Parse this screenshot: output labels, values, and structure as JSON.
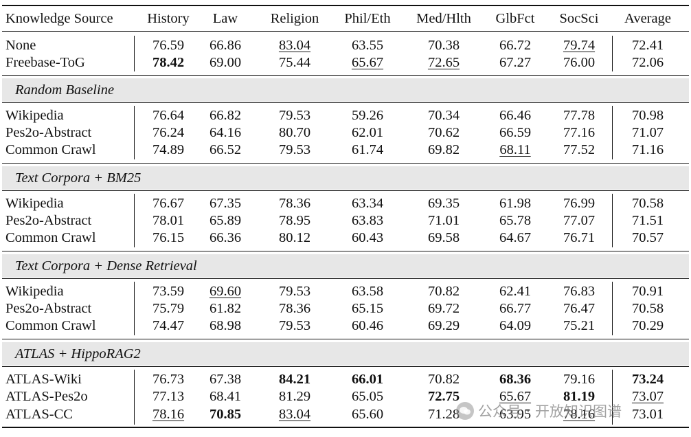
{
  "header": {
    "source": "Knowledge Source",
    "columns": [
      "History",
      "Law",
      "Religion",
      "Phil/Eth",
      "Med/Hlth",
      "GlbFct",
      "SocSci",
      "Average"
    ]
  },
  "sections": [
    {
      "label": "",
      "rows": [
        {
          "source": "None",
          "values": [
            "76.59",
            "66.86",
            "83.04",
            "63.55",
            "70.38",
            "66.72",
            "79.74",
            "72.41"
          ],
          "bold": [],
          "underline": [
            2,
            6
          ]
        },
        {
          "source": "Freebase-ToG",
          "values": [
            "78.42",
            "69.00",
            "75.44",
            "65.67",
            "72.65",
            "67.27",
            "76.00",
            "72.06"
          ],
          "bold": [
            0
          ],
          "underline": [
            3,
            4
          ]
        }
      ]
    },
    {
      "label": "Random Baseline",
      "rows": [
        {
          "source": "Wikipedia",
          "values": [
            "76.64",
            "66.82",
            "79.53",
            "59.26",
            "70.34",
            "66.46",
            "77.78",
            "70.98"
          ],
          "bold": [],
          "underline": []
        },
        {
          "source": "Pes2o-Abstract",
          "values": [
            "76.24",
            "64.16",
            "80.70",
            "62.01",
            "70.62",
            "66.59",
            "77.16",
            "71.07"
          ],
          "bold": [],
          "underline": []
        },
        {
          "source": "Common Crawl",
          "values": [
            "74.89",
            "66.52",
            "79.53",
            "61.74",
            "69.82",
            "68.11",
            "77.52",
            "71.16"
          ],
          "bold": [],
          "underline": [
            5
          ]
        }
      ]
    },
    {
      "label": "Text Corpora + BM25",
      "rows": [
        {
          "source": "Wikipedia",
          "values": [
            "76.67",
            "67.35",
            "78.36",
            "63.34",
            "69.35",
            "61.98",
            "76.99",
            "70.58"
          ],
          "bold": [],
          "underline": []
        },
        {
          "source": "Pes2o-Abstract",
          "values": [
            "78.01",
            "65.89",
            "78.95",
            "63.83",
            "71.01",
            "65.78",
            "77.07",
            "71.51"
          ],
          "bold": [],
          "underline": []
        },
        {
          "source": "Common Crawl",
          "values": [
            "76.15",
            "66.36",
            "80.12",
            "60.43",
            "69.58",
            "64.67",
            "76.71",
            "70.57"
          ],
          "bold": [],
          "underline": []
        }
      ]
    },
    {
      "label": "Text Corpora + Dense Retrieval",
      "rows": [
        {
          "source": "Wikipedia",
          "values": [
            "73.59",
            "69.60",
            "79.53",
            "63.58",
            "70.82",
            "62.41",
            "76.83",
            "70.91"
          ],
          "bold": [],
          "underline": [
            1
          ]
        },
        {
          "source": "Pes2o-Abstract",
          "values": [
            "75.79",
            "61.82",
            "78.36",
            "65.15",
            "69.72",
            "66.77",
            "76.47",
            "70.58"
          ],
          "bold": [],
          "underline": []
        },
        {
          "source": "Common Crawl",
          "values": [
            "74.47",
            "68.98",
            "79.53",
            "60.46",
            "69.29",
            "64.09",
            "75.21",
            "70.29"
          ],
          "bold": [],
          "underline": []
        }
      ]
    },
    {
      "label": "ATLAS + HippoRAG2",
      "rows": [
        {
          "source": "ATLAS-Wiki",
          "values": [
            "76.73",
            "67.38",
            "84.21",
            "66.01",
            "70.82",
            "68.36",
            "79.16",
            "73.24"
          ],
          "bold": [
            2,
            3,
            5,
            7
          ],
          "underline": []
        },
        {
          "source": "ATLAS-Pes2o",
          "values": [
            "77.13",
            "68.41",
            "81.29",
            "65.05",
            "72.75",
            "65.67",
            "81.19",
            "73.07"
          ],
          "bold": [
            4,
            6
          ],
          "underline": [
            5,
            7
          ]
        },
        {
          "source": "ATLAS-CC",
          "values": [
            "78.16",
            "70.85",
            "83.04",
            "65.60",
            "71.28",
            "63.95",
            "78.16",
            "73.01"
          ],
          "bold": [
            1
          ],
          "underline": [
            0,
            2,
            6
          ]
        }
      ]
    }
  ],
  "watermark": {
    "text": "公众号 · 开放知识图谱"
  }
}
